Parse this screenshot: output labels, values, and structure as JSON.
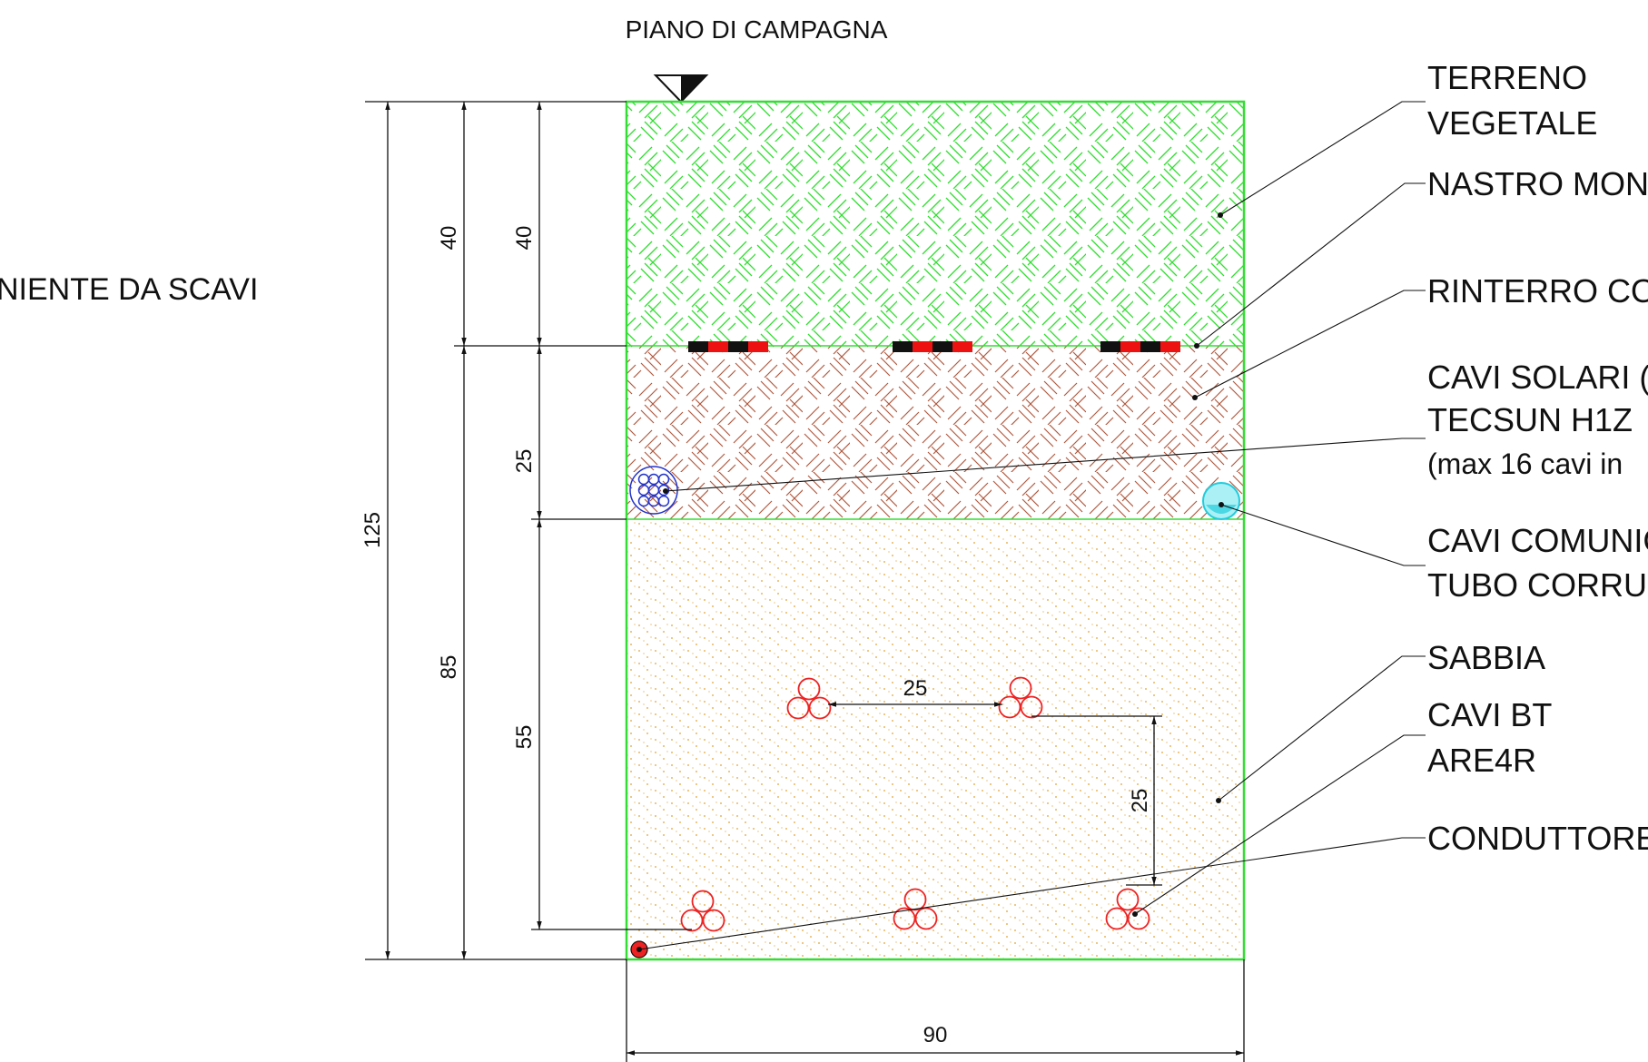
{
  "ground_level": "PIANO DI CAMPAGNA",
  "left_label": "NIENTE DA SCAVI",
  "dimensions": {
    "total_depth": "125",
    "left_upper": "40",
    "left_lower": "85",
    "mid_upper": "40",
    "mid_middle": "25",
    "mid_lower": "55",
    "width": "90",
    "bt_spacing_horizontal": "25",
    "bt_spacing_vertical": "25"
  },
  "legend": {
    "terreno": [
      "TERRENO",
      "VEGETALE"
    ],
    "nastro": "NASTRO MON",
    "rinterro": "RINTERRO CO",
    "cavi_solari": [
      "CAVI SOLARI (",
      "TECSUN   H1Z",
      "(max 16 cavi in"
    ],
    "cavi_comunicazione": [
      "CAVI COMUNIC",
      "TUBO CORRU"
    ],
    "sabbia": "SABBIA",
    "cavi_bt": [
      "CAVI  BT",
      "ARE4R"
    ],
    "conduttore": "CONDUTTORE"
  },
  "colors": {
    "topsoil": "#33dd33",
    "backfill": "#b05a40",
    "sand": "#e0a030",
    "cable_red": "#ee2222",
    "tape_red": "#ee1111",
    "tape_black": "#111111",
    "solar_blue": "#2233cc",
    "comm_cyan": "#22ccdd"
  }
}
